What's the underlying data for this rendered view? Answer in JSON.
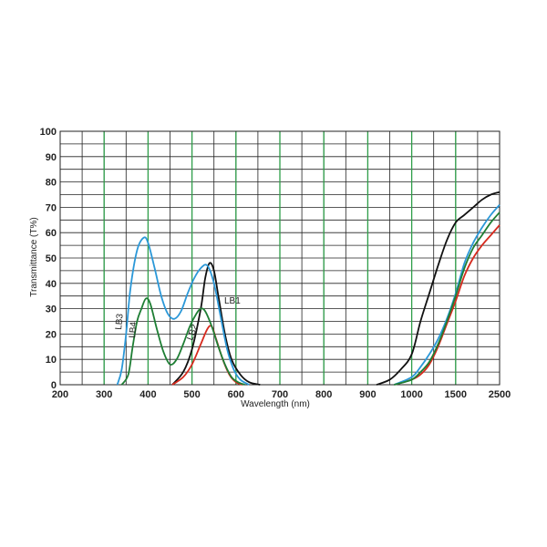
{
  "chart_data": {
    "type": "line",
    "xlabel": "Wavelength (nm)",
    "ylabel": "Transmittance (T%)",
    "x_ticks": [
      "200",
      "300",
      "400",
      "500",
      "600",
      "700",
      "800",
      "900",
      "1000",
      "1500",
      "2500"
    ],
    "y_ticks": [
      "0",
      "10",
      "20",
      "30",
      "40",
      "50",
      "60",
      "70",
      "80",
      "90",
      "100"
    ],
    "ylim": [
      0,
      100
    ],
    "grid": true,
    "series": [
      {
        "name": "LB1",
        "color": "#111111",
        "points": [
          [
            455,
            0
          ],
          [
            480,
            5
          ],
          [
            500,
            14
          ],
          [
            520,
            30
          ],
          [
            530,
            42
          ],
          [
            540,
            48
          ],
          [
            550,
            45
          ],
          [
            560,
            35
          ],
          [
            575,
            20
          ],
          [
            590,
            10
          ],
          [
            610,
            4
          ],
          [
            630,
            1
          ],
          [
            655,
            0
          ],
          [
            920,
            0
          ],
          [
            950,
            2
          ],
          [
            975,
            6
          ],
          [
            1000,
            12
          ],
          [
            1100,
            25
          ],
          [
            1200,
            36
          ],
          [
            1300,
            47
          ],
          [
            1400,
            57
          ],
          [
            1500,
            64
          ],
          [
            1700,
            67
          ],
          [
            1900,
            70
          ],
          [
            2100,
            73
          ],
          [
            2300,
            75
          ],
          [
            2500,
            76
          ]
        ]
      },
      {
        "name": "LB2",
        "color": "#d62a1e",
        "points": [
          [
            455,
            0
          ],
          [
            480,
            3
          ],
          [
            500,
            8
          ],
          [
            520,
            16
          ],
          [
            535,
            22
          ],
          [
            545,
            23
          ],
          [
            555,
            18
          ],
          [
            570,
            10
          ],
          [
            585,
            4
          ],
          [
            600,
            1
          ],
          [
            615,
            0
          ],
          [
            960,
            0
          ],
          [
            1000,
            2
          ],
          [
            1100,
            4
          ],
          [
            1200,
            8
          ],
          [
            1300,
            15
          ],
          [
            1400,
            24
          ],
          [
            1500,
            33
          ],
          [
            1700,
            43
          ],
          [
            1900,
            50
          ],
          [
            2100,
            55
          ],
          [
            2300,
            59
          ],
          [
            2500,
            63
          ]
        ]
      },
      {
        "name": "LB3",
        "color": "#2b98d8",
        "points": [
          [
            330,
            0
          ],
          [
            340,
            6
          ],
          [
            350,
            20
          ],
          [
            360,
            38
          ],
          [
            375,
            53
          ],
          [
            390,
            58
          ],
          [
            400,
            56
          ],
          [
            415,
            46
          ],
          [
            430,
            35
          ],
          [
            445,
            28
          ],
          [
            460,
            26
          ],
          [
            475,
            29
          ],
          [
            490,
            36
          ],
          [
            505,
            42
          ],
          [
            520,
            46
          ],
          [
            535,
            47
          ],
          [
            550,
            40
          ],
          [
            565,
            27
          ],
          [
            580,
            14
          ],
          [
            595,
            6
          ],
          [
            610,
            2
          ],
          [
            630,
            0
          ],
          [
            960,
            0
          ],
          [
            1000,
            3
          ],
          [
            1100,
            7
          ],
          [
            1200,
            12
          ],
          [
            1300,
            18
          ],
          [
            1400,
            26
          ],
          [
            1500,
            36
          ],
          [
            1700,
            48
          ],
          [
            1900,
            56
          ],
          [
            2100,
            62
          ],
          [
            2300,
            67
          ],
          [
            2500,
            71
          ]
        ]
      },
      {
        "name": "LB4",
        "color": "#1e7e34",
        "points": [
          [
            340,
            0
          ],
          [
            355,
            4
          ],
          [
            365,
            15
          ],
          [
            375,
            25
          ],
          [
            385,
            30
          ],
          [
            395,
            34
          ],
          [
            405,
            32
          ],
          [
            420,
            22
          ],
          [
            435,
            13
          ],
          [
            450,
            8
          ],
          [
            465,
            10
          ],
          [
            480,
            16
          ],
          [
            495,
            23
          ],
          [
            510,
            28
          ],
          [
            520,
            30
          ],
          [
            530,
            29
          ],
          [
            545,
            23
          ],
          [
            560,
            15
          ],
          [
            575,
            8
          ],
          [
            590,
            3
          ],
          [
            605,
            1
          ],
          [
            620,
            0
          ],
          [
            960,
            0
          ],
          [
            1000,
            2
          ],
          [
            1100,
            5
          ],
          [
            1200,
            9
          ],
          [
            1300,
            16
          ],
          [
            1400,
            25
          ],
          [
            1500,
            35
          ],
          [
            1700,
            46
          ],
          [
            1900,
            54
          ],
          [
            2100,
            59
          ],
          [
            2300,
            64
          ],
          [
            2500,
            68
          ]
        ]
      }
    ],
    "labels": {
      "lb1": "LB1",
      "lb2": "LB2",
      "lb3": "LB3",
      "lb4": "LB4"
    },
    "green_gridline_positions": [
      300,
      400,
      500,
      600,
      700,
      800,
      900,
      1000,
      1500
    ],
    "gridline_color": "#222222",
    "green_gridline_color": "#2e9e49"
  }
}
